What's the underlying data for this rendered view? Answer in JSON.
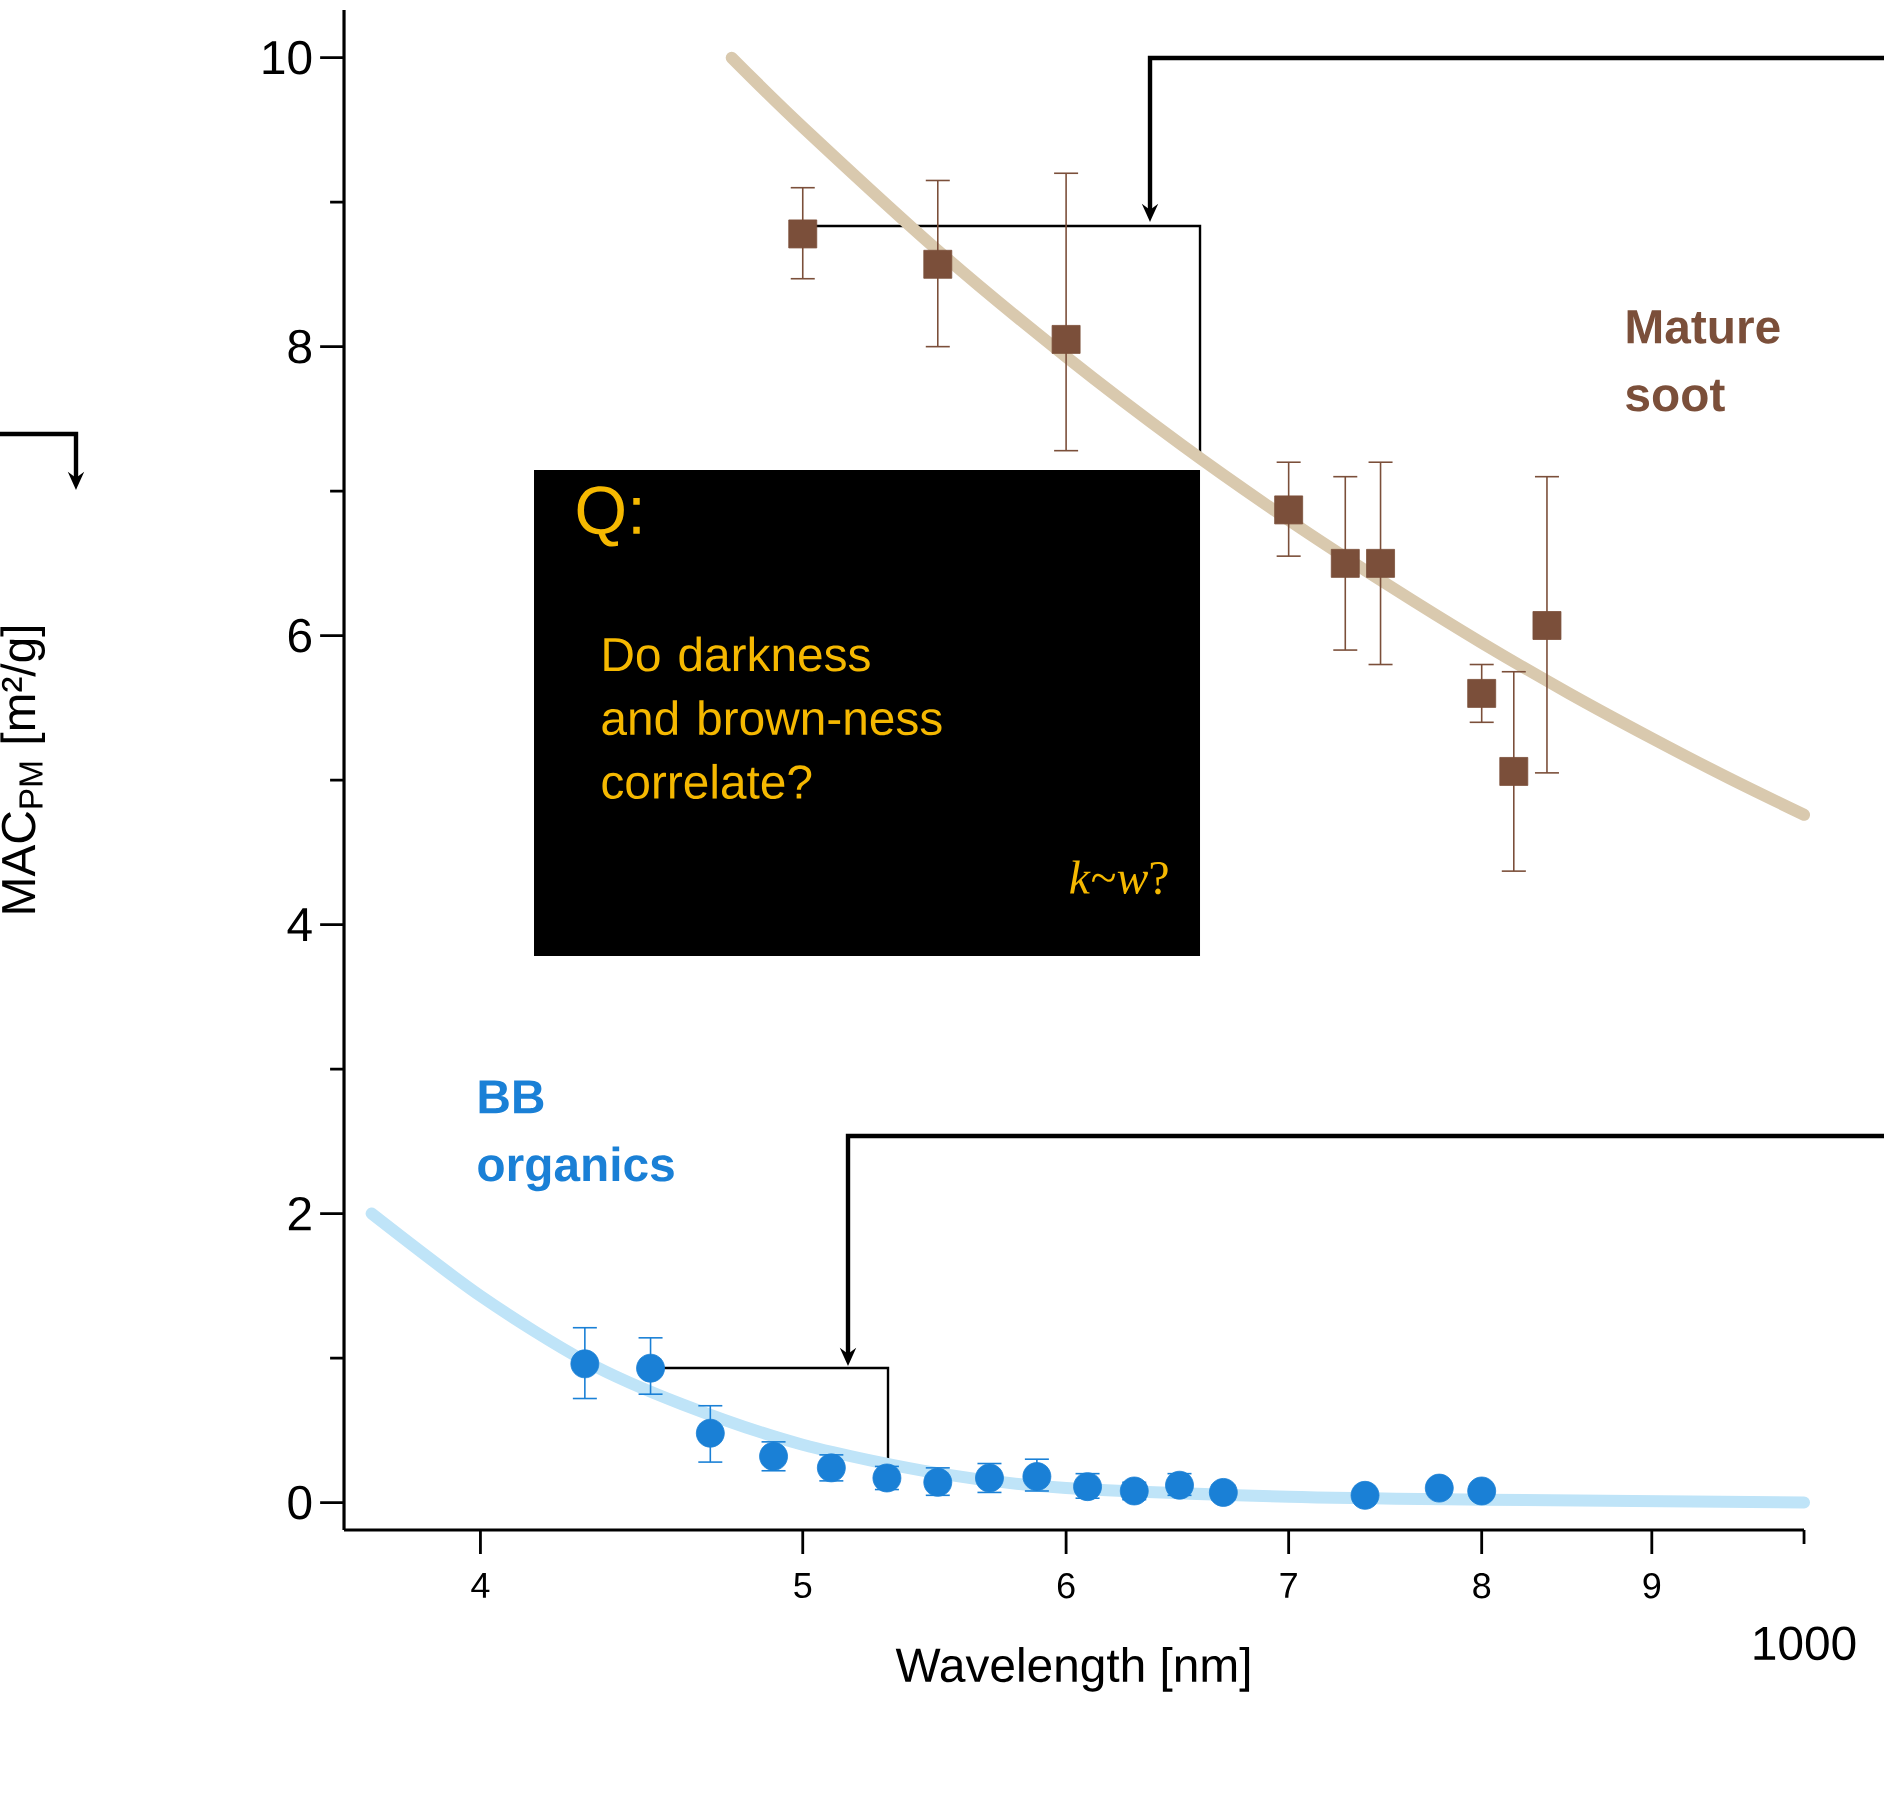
{
  "chart_data": {
    "type": "scatter",
    "xlabel": "Wavelength [nm]",
    "ylabel": "MAC$_{PM}$ [m²/g]",
    "log": "x",
    "xlim": [
      3.64,
      10
    ],
    "ylim": [
      -0.19,
      10.33
    ],
    "xticks": [
      4,
      5,
      6,
      7,
      8,
      9,
      {
        "value": 10,
        "label": null
      }
    ],
    "yticks": [
      0,
      {
        "value": 1,
        "label": null
      },
      2,
      {
        "value": 3,
        "label": null
      },
      4,
      {
        "value": 5,
        "label": null
      },
      6,
      {
        "value": 7,
        "label": null
      },
      8,
      {
        "value": 9,
        "label": null
      },
      10
    ],
    "series": [
      {
        "type": "line",
        "color": "#d9c9ae",
        "x": [
          4.76,
          5.0,
          5.5,
          6.0,
          6.5,
          7.0,
          7.5,
          8.0,
          8.5,
          9.0,
          9.5,
          10.0
        ],
        "values": [
          10.0,
          9.52,
          8.65,
          7.93,
          7.32,
          6.8,
          6.35,
          5.95,
          5.6,
          5.29,
          5.01,
          4.76
        ]
      },
      {
        "type": "line",
        "color": "#bfe4f8",
        "x": [
          3.71,
          4.0,
          4.3,
          4.6,
          5.0,
          5.5,
          6.0,
          7.0,
          8.0,
          10.0
        ],
        "values": [
          2.0,
          1.43,
          0.98,
          0.68,
          0.4,
          0.2,
          0.1,
          0.04,
          0.02,
          0.0
        ]
      },
      {
        "name": "Mature soot",
        "color": "#7b4f3a",
        "marker": "square",
        "x": [
          5.0,
          5.49,
          6.0,
          7.0,
          7.28,
          7.46,
          8.0,
          8.18,
          8.37
        ],
        "values": [
          8.78,
          8.57,
          8.05,
          6.87,
          6.5,
          6.5,
          5.6,
          5.06,
          6.07
        ],
        "errors": [
          [
            8.47,
            9.1
          ],
          [
            8.0,
            9.15
          ],
          [
            7.28,
            9.2
          ],
          [
            6.55,
            7.2
          ],
          [
            5.9,
            7.1
          ],
          [
            5.8,
            7.2
          ],
          [
            5.4,
            5.8
          ],
          [
            4.37,
            5.75
          ],
          [
            5.05,
            7.1
          ]
        ]
      },
      {
        "name": "BB organics",
        "color": "#1a80d6",
        "marker": "circle",
        "x": [
          4.3,
          4.5,
          4.69,
          4.9,
          5.1,
          5.3,
          5.49,
          5.69,
          5.88,
          6.09,
          6.29,
          6.49,
          6.69,
          7.38,
          7.77,
          8.0
        ],
        "values": [
          0.96,
          0.93,
          0.48,
          0.32,
          0.24,
          0.17,
          0.14,
          0.17,
          0.18,
          0.11,
          0.08,
          0.12,
          0.07,
          0.05,
          0.1,
          0.08
        ],
        "errors": [
          [
            0.72,
            1.21
          ],
          [
            0.75,
            1.14
          ],
          [
            0.28,
            0.67
          ],
          [
            0.22,
            0.42
          ],
          [
            0.15,
            0.33
          ],
          [
            0.09,
            0.25
          ],
          [
            0.05,
            0.24
          ],
          [
            0.07,
            0.27
          ],
          [
            0.08,
            0.3
          ],
          [
            0.03,
            0.2
          ],
          [
            0.02,
            0.14
          ],
          [
            0.05,
            0.2
          ],
          [
            0.02,
            0.12
          ],
          null,
          null,
          null
        ]
      }
    ],
    "annotations": [
      "Q:",
      "Do darkness and brown-ness correlate?",
      "*k*~*w*?",
      "1000"
    ]
  }
}
